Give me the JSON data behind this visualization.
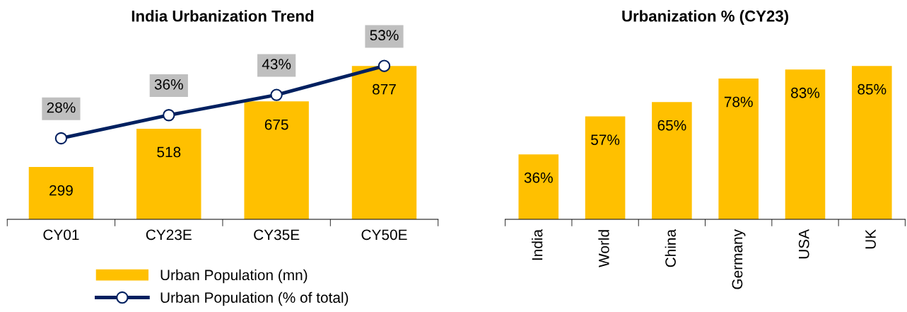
{
  "chart_data": [
    {
      "type": "bar",
      "title": "India Urbanization Trend",
      "categories": [
        "CY01",
        "CY23E",
        "CY35E",
        "CY50E"
      ],
      "series": [
        {
          "name": "Urban Population (mn)",
          "color": "#ffc000",
          "values": [
            299,
            518,
            675,
            877
          ],
          "value_labels": [
            "299",
            "518",
            "675",
            "877"
          ]
        },
        {
          "name": "Urban Population (% of total)",
          "type": "line",
          "axis": "y2",
          "color": "#002060",
          "values": [
            28,
            36,
            43,
            53
          ],
          "value_labels": [
            "28%",
            "36%",
            "43%",
            "53%"
          ]
        }
      ],
      "tick_labels": "x",
      "legend": "bottom",
      "marker": "circle",
      "line_style": "solid"
    },
    {
      "type": "bar",
      "title": "Urbanization % (CY23)",
      "categories": [
        "India",
        "World",
        "China",
        "Germany",
        "USA",
        "UK"
      ],
      "series": [
        {
          "color": "#ffc000",
          "values": [
            36,
            57,
            65,
            78,
            83,
            85
          ],
          "value_labels": [
            "36%",
            "57%",
            "65%",
            "78%",
            "83%",
            "85%"
          ]
        }
      ],
      "tick_labels": "x"
    }
  ]
}
